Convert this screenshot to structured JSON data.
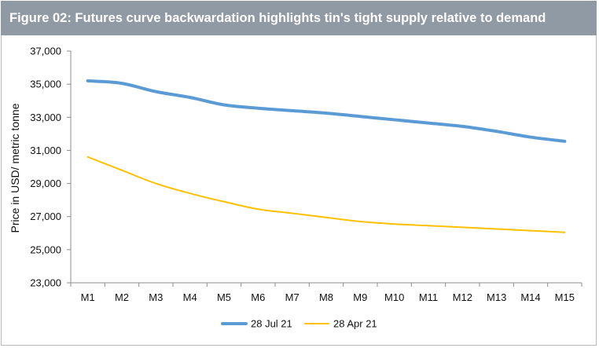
{
  "chart_data": {
    "type": "line",
    "title": "Figure 02: Futures curve backwardation highlights tin's tight supply relative to demand",
    "xlabel": "",
    "ylabel": "Price in USD/ metric tonne",
    "categories": [
      "M1",
      "M2",
      "M3",
      "M4",
      "M5",
      "M6",
      "M7",
      "M8",
      "M9",
      "M10",
      "M11",
      "M12",
      "M13",
      "M14",
      "M15"
    ],
    "ylim": [
      23000,
      37000
    ],
    "yticks": [
      "23,000",
      "25,000",
      "27,000",
      "29,000",
      "31,000",
      "33,000",
      "35,000",
      "37,000"
    ],
    "ytick_values": [
      23000,
      25000,
      27000,
      29000,
      31000,
      33000,
      35000,
      37000
    ],
    "grid": false,
    "legend": "bottom",
    "series": [
      {
        "name": "28 Jul 21",
        "color": "#5b9bd5",
        "values": [
          35200,
          35050,
          34550,
          34200,
          33750,
          33550,
          33400,
          33250,
          33050,
          32850,
          32650,
          32450,
          32150,
          31800,
          31550
        ]
      },
      {
        "name": "28 Apr 21",
        "color": "#ffc000",
        "values": [
          30600,
          29800,
          29000,
          28400,
          27900,
          27450,
          27200,
          26950,
          26700,
          26550,
          26450,
          26350,
          26250,
          26150,
          26050
        ]
      }
    ]
  }
}
